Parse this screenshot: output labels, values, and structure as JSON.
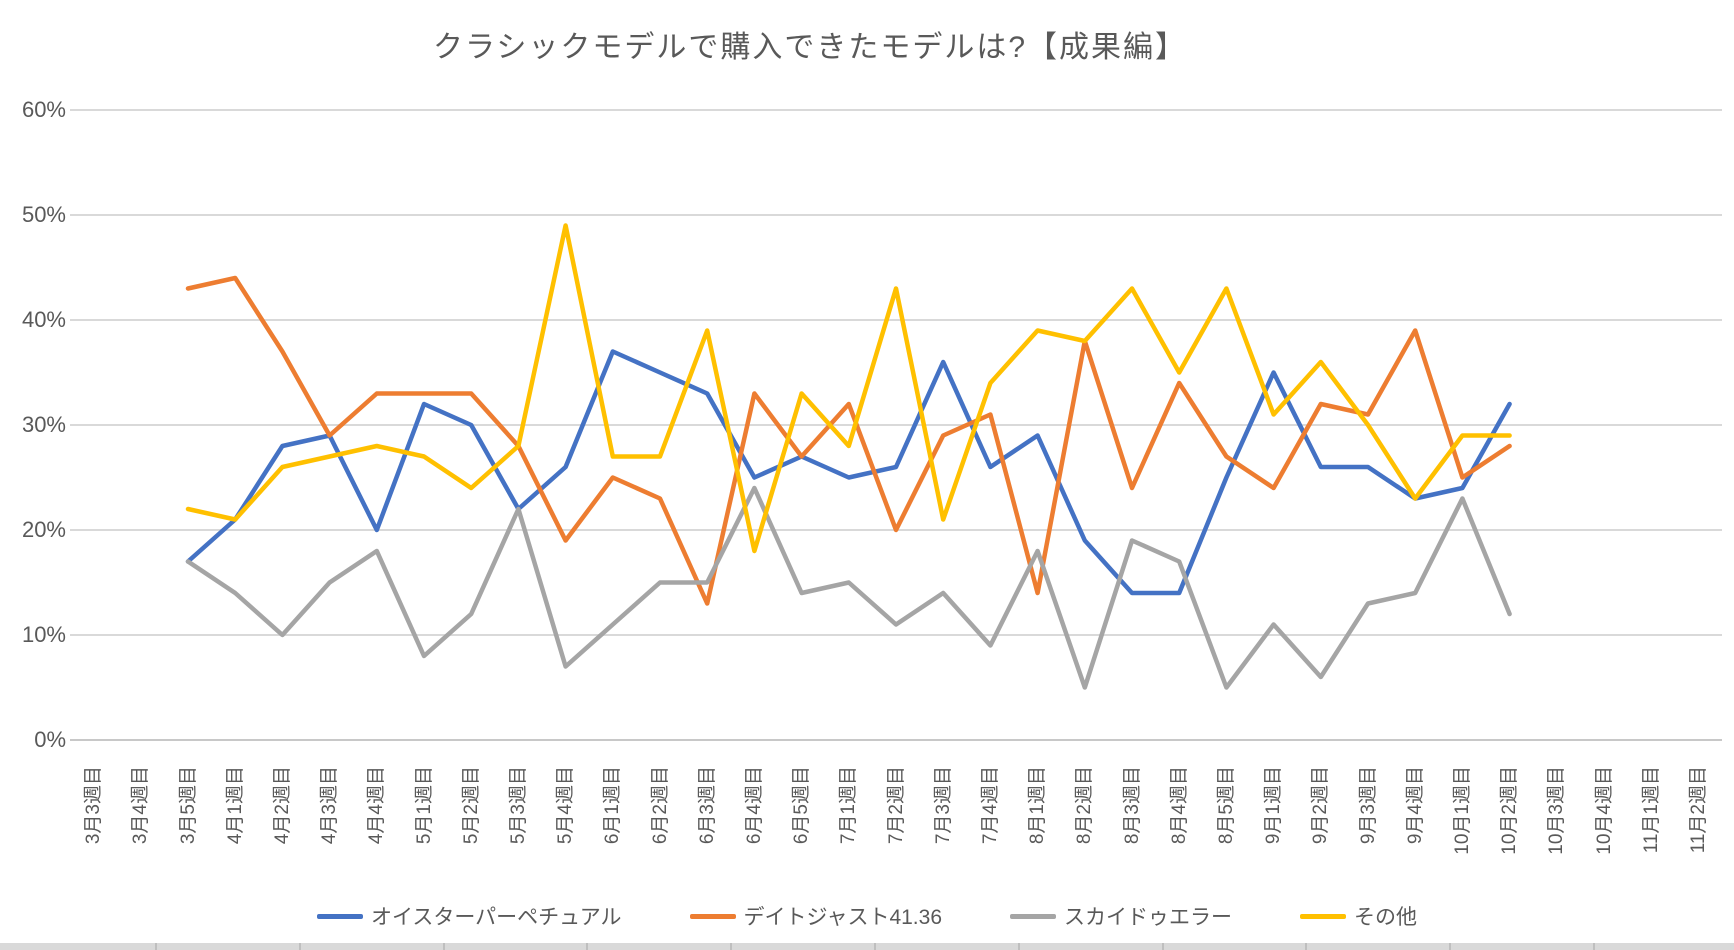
{
  "title": "クラシックモデルで購入できたモデルは?【成果編】",
  "y_axis": {
    "labels": [
      "60%",
      "50%",
      "40%",
      "30%",
      "20%",
      "10%",
      "0%"
    ]
  },
  "chart_data": {
    "type": "line",
    "title": "クラシックモデルで購入できたモデルは?【成果編】",
    "ylabel": "",
    "xlabel": "",
    "ylim": [
      0,
      60
    ],
    "y_tick_step": 10,
    "y_tick_labels": [
      "0%",
      "10%",
      "20%",
      "30%",
      "40%",
      "50%",
      "60%"
    ],
    "grid": true,
    "legend_position": "bottom",
    "categories": [
      "3月3週目",
      "3月4週目",
      "3月5週目",
      "4月1週目",
      "4月2週目",
      "4月3週目",
      "4月4週目",
      "5月1週目",
      "5月2週目",
      "5月3週目",
      "5月4週目",
      "6月1週目",
      "6月2週目",
      "6月3週目",
      "6月4週目",
      "6月5週目",
      "7月1週目",
      "7月2週目",
      "7月3週目",
      "7月4週目",
      "8月1週目",
      "8月2週目",
      "8月3週目",
      "8月4週目",
      "8月5週目",
      "9月1週目",
      "9月2週目",
      "9月3週目",
      "9月4週目",
      "10月1週目",
      "10月2週目",
      "10月3週目",
      "10月4週目",
      "11月1週目",
      "11月2週目"
    ],
    "series": [
      {
        "name": "オイスターパーペチュアル",
        "color": "#4472C4",
        "values": [
          null,
          null,
          17,
          21,
          28,
          29,
          20,
          32,
          30,
          22,
          26,
          37,
          35,
          33,
          25,
          27,
          25,
          26,
          36,
          26,
          29,
          19,
          14,
          14,
          25,
          35,
          26,
          26,
          23,
          24,
          32,
          null,
          null,
          null,
          null
        ]
      },
      {
        "name": "デイトジャスト41.36",
        "color": "#ED7D31",
        "values": [
          null,
          null,
          43,
          44,
          37,
          29,
          33,
          33,
          33,
          28,
          19,
          25,
          23,
          13,
          33,
          27,
          32,
          20,
          29,
          31,
          14,
          38,
          24,
          34,
          27,
          24,
          32,
          31,
          39,
          25,
          28,
          null,
          null,
          null,
          null
        ]
      },
      {
        "name": "スカイドゥエラー",
        "color": "#A5A5A5",
        "values": [
          null,
          null,
          17,
          14,
          10,
          15,
          18,
          8,
          12,
          22,
          7,
          11,
          15,
          15,
          24,
          14,
          15,
          11,
          14,
          9,
          18,
          5,
          19,
          17,
          5,
          11,
          6,
          13,
          14,
          23,
          12,
          null,
          null,
          null,
          null
        ]
      },
      {
        "name": "その他",
        "color": "#FFC000",
        "values": [
          null,
          null,
          22,
          21,
          26,
          27,
          28,
          27,
          24,
          28,
          49,
          27,
          27,
          39,
          18,
          33,
          28,
          43,
          21,
          34,
          39,
          38,
          43,
          35,
          43,
          31,
          36,
          30,
          23,
          29,
          29,
          null,
          null,
          null,
          null
        ]
      }
    ],
    "colors": {
      "gridline": "#D9D9D9",
      "axis_line": "#C8C8C8",
      "text": "#595959",
      "worksheet_edge": "#D9D9D9"
    }
  }
}
